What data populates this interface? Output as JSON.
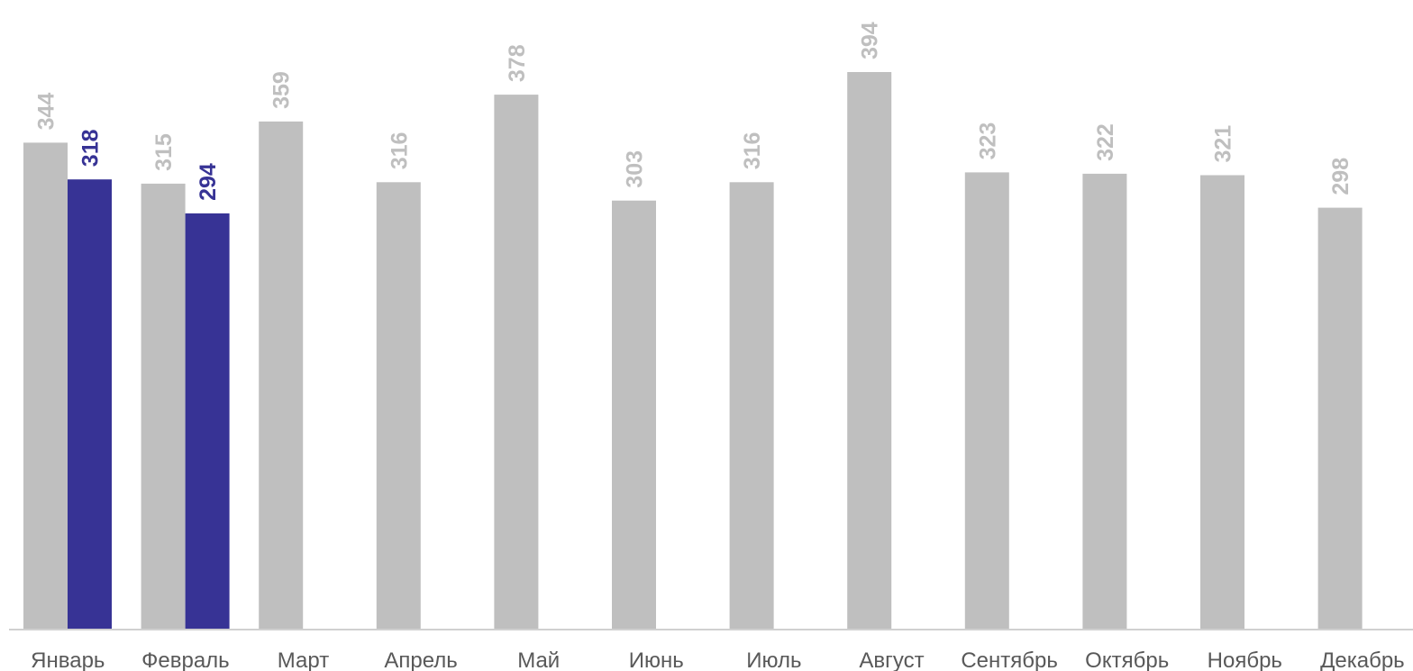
{
  "chart_data": {
    "type": "bar",
    "categories": [
      "Январь",
      "Февраль",
      "Март",
      "Апрель",
      "Май",
      "Июнь",
      "Июль",
      "Август",
      "Сентябрь",
      "Октябрь",
      "Ноябрь",
      "Декабрь"
    ],
    "series": [
      {
        "color": "#bfbfbf",
        "values": [
          344,
          315,
          359,
          316,
          378,
          303,
          316,
          394,
          323,
          322,
          321,
          298
        ]
      },
      {
        "color": "#373395",
        "values": [
          318,
          294,
          null,
          null,
          null,
          null,
          null,
          null,
          null,
          null,
          null,
          null
        ]
      }
    ],
    "title": "",
    "xlabel": "",
    "ylabel": "",
    "grid": false,
    "legend": "none",
    "data_labels": "vertical, above bars",
    "axis_color": "#d0d0d0"
  }
}
